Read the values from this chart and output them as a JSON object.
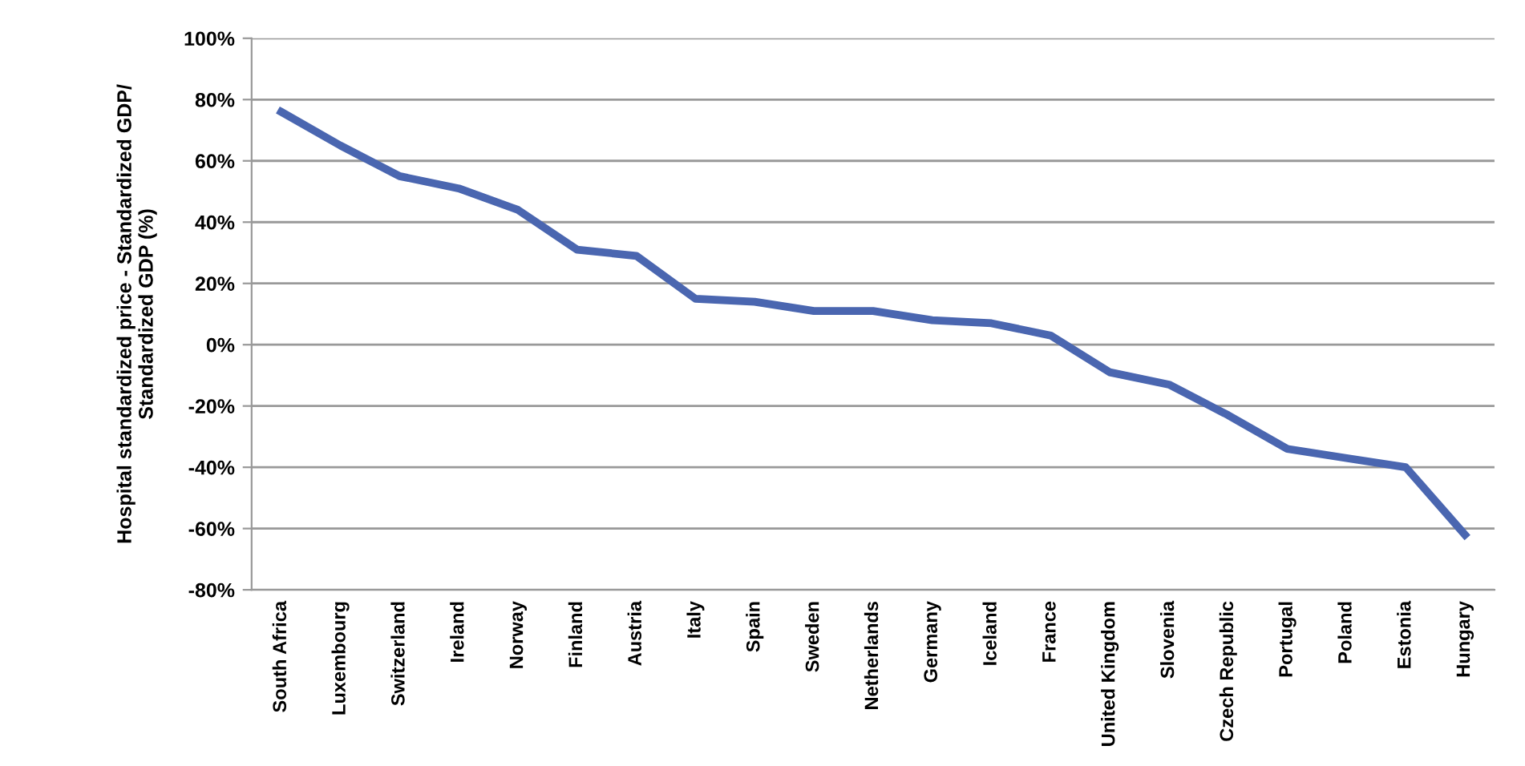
{
  "chart_data": {
    "type": "line",
    "ylabel": "Hospital standardized price - Standardized GDP/\nStandardized GDP (%)",
    "categories": [
      "South Africa",
      "Luxembourg",
      "Switzerland",
      "Ireland",
      "Norway",
      "Finland",
      "Austria",
      "Italy",
      "Spain",
      "Sweden",
      "Netherlands",
      "Germany",
      "Iceland",
      "France",
      "United Kingdom",
      "Slovenia",
      "Czech Republic",
      "Portugal",
      "Poland",
      "Estonia",
      "Hungary"
    ],
    "series": [
      {
        "color": "#4a66b0",
        "values": [
          76,
          65,
          55,
          51,
          44,
          31,
          29,
          15,
          14,
          11,
          11,
          8,
          7,
          3,
          -9,
          -13,
          -23,
          -34,
          -37,
          -40,
          -62
        ]
      }
    ],
    "ylim": [
      -80,
      100
    ],
    "yticks": [
      {
        "value": -80,
        "label": "-80%"
      },
      {
        "value": -60,
        "label": "-60%"
      },
      {
        "value": -40,
        "label": "-40%"
      },
      {
        "value": -20,
        "label": "-20%"
      },
      {
        "value": 0,
        "label": "0%"
      },
      {
        "value": 20,
        "label": "20%"
      },
      {
        "value": 40,
        "label": "40%"
      },
      {
        "value": 60,
        "label": "60%"
      },
      {
        "value": 80,
        "label": "80%"
      },
      {
        "value": 100,
        "label": "100%"
      }
    ],
    "grid": "y",
    "legend": false,
    "marker": "none",
    "line_style": "solid"
  }
}
